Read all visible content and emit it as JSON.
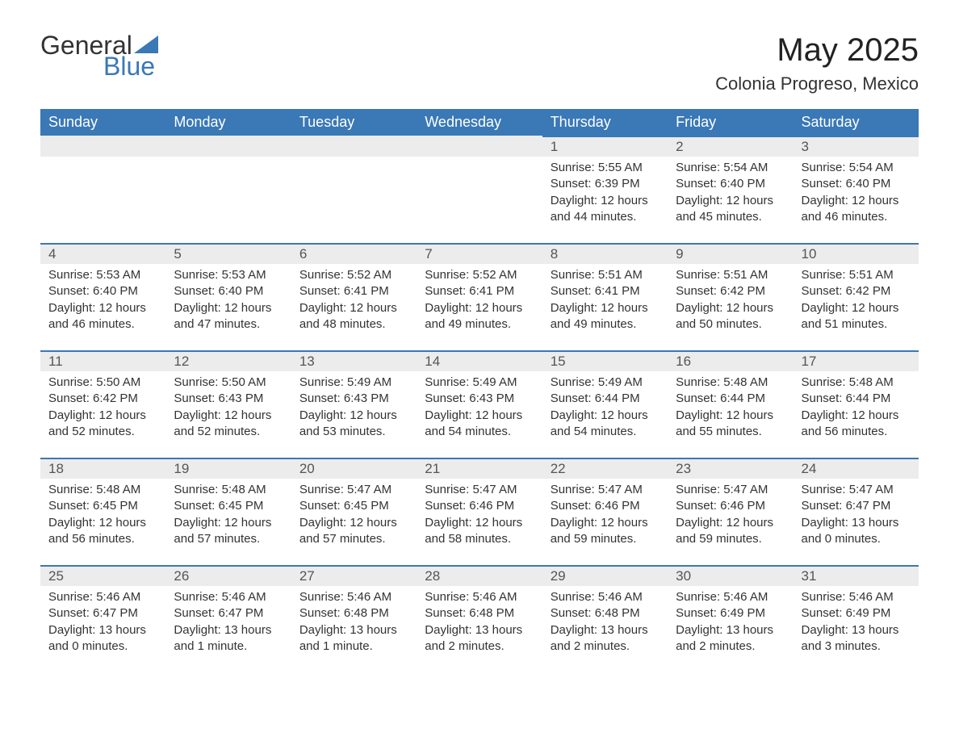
{
  "brand": {
    "word1": "General",
    "word2": "Blue",
    "sail_color": "#3a78b6"
  },
  "title": "May 2025",
  "location": "Colonia Progreso, Mexico",
  "colors": {
    "header_bg": "#3a78b6",
    "header_text": "#ffffff",
    "daynum_bg": "#ececec",
    "body_text": "#333333"
  },
  "weekday_labels": [
    "Sunday",
    "Monday",
    "Tuesday",
    "Wednesday",
    "Thursday",
    "Friday",
    "Saturday"
  ],
  "weeks": [
    [
      null,
      null,
      null,
      null,
      {
        "n": "1",
        "sr": "Sunrise: 5:55 AM",
        "ss": "Sunset: 6:39 PM",
        "dl": "Daylight: 12 hours and 44 minutes."
      },
      {
        "n": "2",
        "sr": "Sunrise: 5:54 AM",
        "ss": "Sunset: 6:40 PM",
        "dl": "Daylight: 12 hours and 45 minutes."
      },
      {
        "n": "3",
        "sr": "Sunrise: 5:54 AM",
        "ss": "Sunset: 6:40 PM",
        "dl": "Daylight: 12 hours and 46 minutes."
      }
    ],
    [
      {
        "n": "4",
        "sr": "Sunrise: 5:53 AM",
        "ss": "Sunset: 6:40 PM",
        "dl": "Daylight: 12 hours and 46 minutes."
      },
      {
        "n": "5",
        "sr": "Sunrise: 5:53 AM",
        "ss": "Sunset: 6:40 PM",
        "dl": "Daylight: 12 hours and 47 minutes."
      },
      {
        "n": "6",
        "sr": "Sunrise: 5:52 AM",
        "ss": "Sunset: 6:41 PM",
        "dl": "Daylight: 12 hours and 48 minutes."
      },
      {
        "n": "7",
        "sr": "Sunrise: 5:52 AM",
        "ss": "Sunset: 6:41 PM",
        "dl": "Daylight: 12 hours and 49 minutes."
      },
      {
        "n": "8",
        "sr": "Sunrise: 5:51 AM",
        "ss": "Sunset: 6:41 PM",
        "dl": "Daylight: 12 hours and 49 minutes."
      },
      {
        "n": "9",
        "sr": "Sunrise: 5:51 AM",
        "ss": "Sunset: 6:42 PM",
        "dl": "Daylight: 12 hours and 50 minutes."
      },
      {
        "n": "10",
        "sr": "Sunrise: 5:51 AM",
        "ss": "Sunset: 6:42 PM",
        "dl": "Daylight: 12 hours and 51 minutes."
      }
    ],
    [
      {
        "n": "11",
        "sr": "Sunrise: 5:50 AM",
        "ss": "Sunset: 6:42 PM",
        "dl": "Daylight: 12 hours and 52 minutes."
      },
      {
        "n": "12",
        "sr": "Sunrise: 5:50 AM",
        "ss": "Sunset: 6:43 PM",
        "dl": "Daylight: 12 hours and 52 minutes."
      },
      {
        "n": "13",
        "sr": "Sunrise: 5:49 AM",
        "ss": "Sunset: 6:43 PM",
        "dl": "Daylight: 12 hours and 53 minutes."
      },
      {
        "n": "14",
        "sr": "Sunrise: 5:49 AM",
        "ss": "Sunset: 6:43 PM",
        "dl": "Daylight: 12 hours and 54 minutes."
      },
      {
        "n": "15",
        "sr": "Sunrise: 5:49 AM",
        "ss": "Sunset: 6:44 PM",
        "dl": "Daylight: 12 hours and 54 minutes."
      },
      {
        "n": "16",
        "sr": "Sunrise: 5:48 AM",
        "ss": "Sunset: 6:44 PM",
        "dl": "Daylight: 12 hours and 55 minutes."
      },
      {
        "n": "17",
        "sr": "Sunrise: 5:48 AM",
        "ss": "Sunset: 6:44 PM",
        "dl": "Daylight: 12 hours and 56 minutes."
      }
    ],
    [
      {
        "n": "18",
        "sr": "Sunrise: 5:48 AM",
        "ss": "Sunset: 6:45 PM",
        "dl": "Daylight: 12 hours and 56 minutes."
      },
      {
        "n": "19",
        "sr": "Sunrise: 5:48 AM",
        "ss": "Sunset: 6:45 PM",
        "dl": "Daylight: 12 hours and 57 minutes."
      },
      {
        "n": "20",
        "sr": "Sunrise: 5:47 AM",
        "ss": "Sunset: 6:45 PM",
        "dl": "Daylight: 12 hours and 57 minutes."
      },
      {
        "n": "21",
        "sr": "Sunrise: 5:47 AM",
        "ss": "Sunset: 6:46 PM",
        "dl": "Daylight: 12 hours and 58 minutes."
      },
      {
        "n": "22",
        "sr": "Sunrise: 5:47 AM",
        "ss": "Sunset: 6:46 PM",
        "dl": "Daylight: 12 hours and 59 minutes."
      },
      {
        "n": "23",
        "sr": "Sunrise: 5:47 AM",
        "ss": "Sunset: 6:46 PM",
        "dl": "Daylight: 12 hours and 59 minutes."
      },
      {
        "n": "24",
        "sr": "Sunrise: 5:47 AM",
        "ss": "Sunset: 6:47 PM",
        "dl": "Daylight: 13 hours and 0 minutes."
      }
    ],
    [
      {
        "n": "25",
        "sr": "Sunrise: 5:46 AM",
        "ss": "Sunset: 6:47 PM",
        "dl": "Daylight: 13 hours and 0 minutes."
      },
      {
        "n": "26",
        "sr": "Sunrise: 5:46 AM",
        "ss": "Sunset: 6:47 PM",
        "dl": "Daylight: 13 hours and 1 minute."
      },
      {
        "n": "27",
        "sr": "Sunrise: 5:46 AM",
        "ss": "Sunset: 6:48 PM",
        "dl": "Daylight: 13 hours and 1 minute."
      },
      {
        "n": "28",
        "sr": "Sunrise: 5:46 AM",
        "ss": "Sunset: 6:48 PM",
        "dl": "Daylight: 13 hours and 2 minutes."
      },
      {
        "n": "29",
        "sr": "Sunrise: 5:46 AM",
        "ss": "Sunset: 6:48 PM",
        "dl": "Daylight: 13 hours and 2 minutes."
      },
      {
        "n": "30",
        "sr": "Sunrise: 5:46 AM",
        "ss": "Sunset: 6:49 PM",
        "dl": "Daylight: 13 hours and 2 minutes."
      },
      {
        "n": "31",
        "sr": "Sunrise: 5:46 AM",
        "ss": "Sunset: 6:49 PM",
        "dl": "Daylight: 13 hours and 3 minutes."
      }
    ]
  ]
}
